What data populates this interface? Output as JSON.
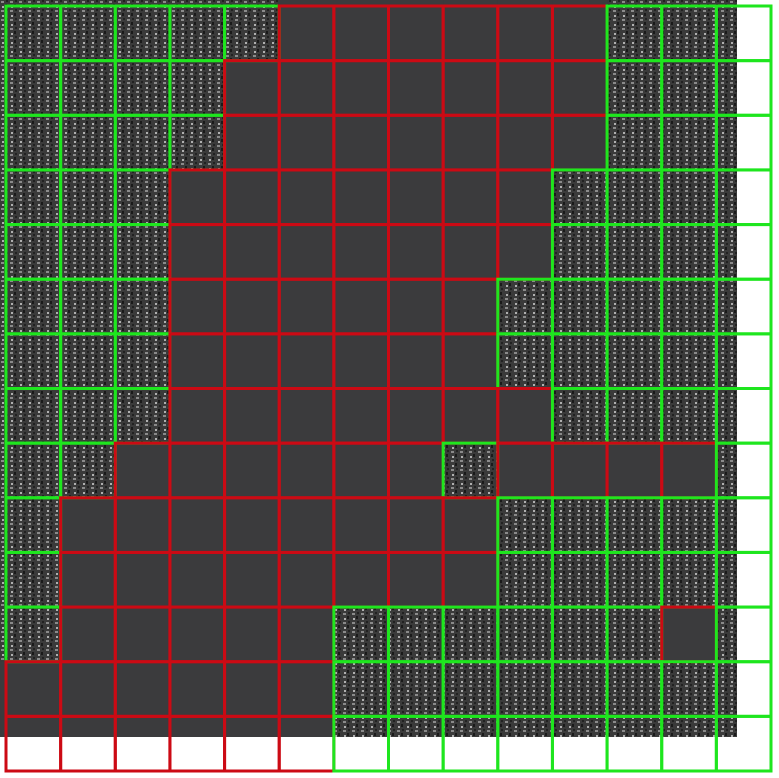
{
  "grid": {
    "rows": 14,
    "cols": 14,
    "legend": {
      "1": {
        "label_color": "#cc0a14"
      },
      "0": {
        "label_color": "#1ee61e"
      }
    },
    "cell_labels": [
      [
        0,
        0,
        0,
        0,
        0,
        1,
        1,
        1,
        1,
        1,
        1,
        0,
        0,
        0
      ],
      [
        0,
        0,
        0,
        0,
        1,
        1,
        1,
        1,
        1,
        1,
        1,
        0,
        0,
        0
      ],
      [
        0,
        0,
        0,
        0,
        1,
        1,
        1,
        1,
        1,
        1,
        1,
        0,
        0,
        0
      ],
      [
        0,
        0,
        0,
        1,
        1,
        1,
        1,
        1,
        1,
        1,
        0,
        0,
        0,
        0
      ],
      [
        0,
        0,
        0,
        1,
        1,
        1,
        1,
        1,
        1,
        1,
        0,
        0,
        0,
        0
      ],
      [
        0,
        0,
        0,
        1,
        1,
        1,
        1,
        1,
        1,
        0,
        0,
        0,
        0,
        0
      ],
      [
        0,
        0,
        0,
        1,
        1,
        1,
        1,
        1,
        1,
        0,
        0,
        0,
        0,
        0
      ],
      [
        0,
        0,
        0,
        1,
        1,
        1,
        1,
        1,
        1,
        1,
        0,
        0,
        0,
        0
      ],
      [
        0,
        0,
        1,
        1,
        1,
        1,
        1,
        1,
        0,
        1,
        1,
        1,
        1,
        0
      ],
      [
        0,
        1,
        1,
        1,
        1,
        1,
        1,
        1,
        1,
        0,
        0,
        0,
        0,
        0
      ],
      [
        0,
        1,
        1,
        1,
        1,
        1,
        1,
        1,
        1,
        0,
        0,
        0,
        0,
        0
      ],
      [
        0,
        1,
        1,
        1,
        1,
        1,
        0,
        0,
        0,
        0,
        0,
        0,
        1,
        0
      ],
      [
        1,
        1,
        1,
        1,
        1,
        1,
        0,
        0,
        0,
        0,
        0,
        0,
        0,
        0
      ],
      [
        1,
        1,
        1,
        1,
        1,
        1,
        0,
        0,
        0,
        0,
        0,
        0,
        0,
        0
      ]
    ]
  }
}
